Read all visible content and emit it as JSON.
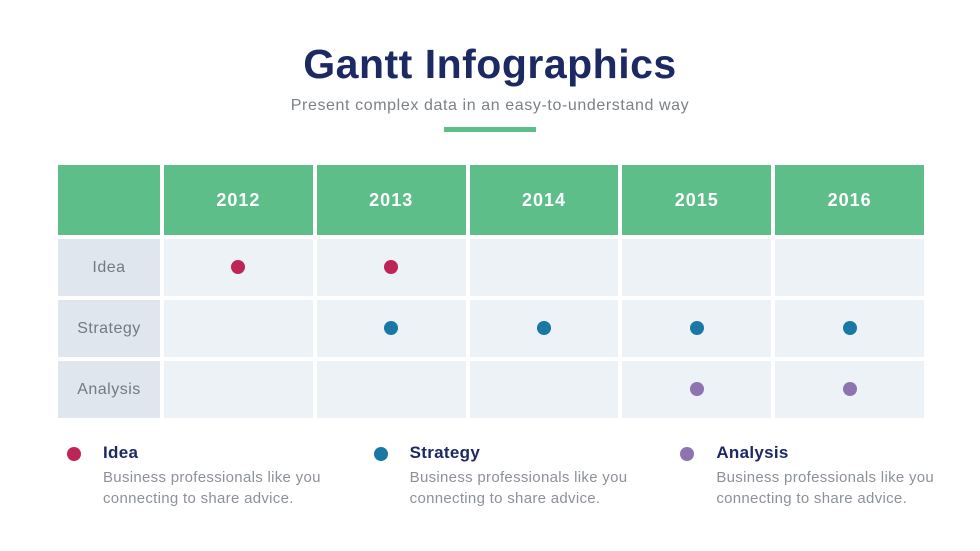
{
  "header": {
    "title": "Gantt Infographics",
    "subtitle": "Present complex data in an easy-to-understand way"
  },
  "chart_data": {
    "type": "table",
    "subtype": "gantt-dot-matrix",
    "title": "Gantt Infographics",
    "columns": [
      "2012",
      "2013",
      "2014",
      "2015",
      "2016"
    ],
    "rows": [
      {
        "label": "Idea",
        "color": "#bf2457",
        "marks": [
          true,
          true,
          false,
          false,
          false
        ],
        "years_marked": [
          2012,
          2013
        ]
      },
      {
        "label": "Strategy",
        "color": "#1a78a6",
        "marks": [
          false,
          true,
          true,
          true,
          true
        ],
        "years_marked": [
          2013,
          2014,
          2015,
          2016
        ]
      },
      {
        "label": "Analysis",
        "color": "#8d73b0",
        "marks": [
          false,
          false,
          false,
          true,
          true
        ],
        "years_marked": [
          2015,
          2016
        ]
      }
    ],
    "legend_position": "bottom",
    "grid": false
  },
  "legend": [
    {
      "title": "Idea",
      "color": "#bf2457",
      "description": "Business professionals like you connecting to share advice."
    },
    {
      "title": "Strategy",
      "color": "#1a78a6",
      "description": "Business professionals like you connecting to share advice."
    },
    {
      "title": "Analysis",
      "color": "#8d73b0",
      "description": "Business professionals like you connecting to share advice."
    }
  ],
  "colors": {
    "accent_green": "#5dbe8a",
    "title_navy": "#1d2963",
    "header_text": "#ffffff",
    "row_label_bg": "#dfe6ee",
    "cell_bg": "#edf2f7",
    "subtitle_gray": "#7c8187",
    "row_label_text": "#6f7b86",
    "description_gray": "#8c9199"
  }
}
